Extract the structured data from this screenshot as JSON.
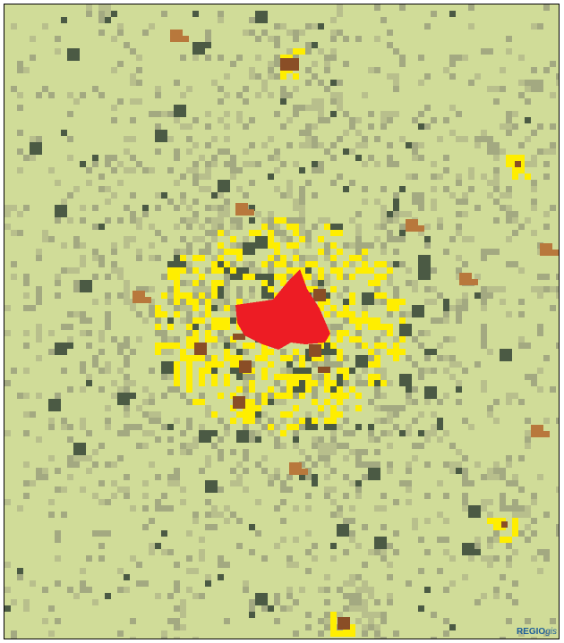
{
  "map": {
    "colors": {
      "background": "#d0dc98",
      "density_low": "#b8bf8c",
      "density_mid": "#a3a981",
      "settlement": "#4b5a44",
      "suburb": "#ffee00",
      "town": "#8a4e26",
      "quarry": "#b8783c",
      "core": "#ed1c24"
    }
  },
  "brand": {
    "part1": "REGIO",
    "part2": "gis",
    "color1": "#1c5d99",
    "color2": "#1c5d99"
  }
}
